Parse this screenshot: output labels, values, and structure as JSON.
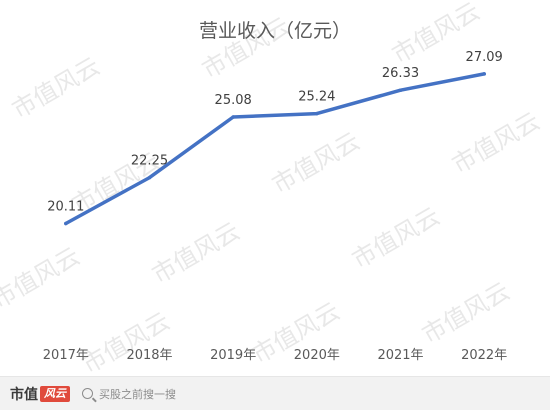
{
  "chart_data": {
    "type": "line",
    "title": "营业收入（亿元）",
    "categories": [
      "2017年",
      "2018年",
      "2019年",
      "2020年",
      "2021年",
      "2022年"
    ],
    "values": [
      20.11,
      22.25,
      25.08,
      25.24,
      26.33,
      27.09
    ],
    "data_labels": [
      "20.11",
      "22.25",
      "25.08",
      "25.24",
      "26.33",
      "27.09"
    ],
    "xlabel": "",
    "ylabel": "",
    "ylim": [
      15,
      29
    ],
    "grid": false,
    "legend": "none",
    "line_color": "#4472c4"
  },
  "watermark": "市值风云",
  "footer": {
    "brand": "市值",
    "brand_tag": "风云",
    "search_hint": "买股之前搜一搜"
  }
}
